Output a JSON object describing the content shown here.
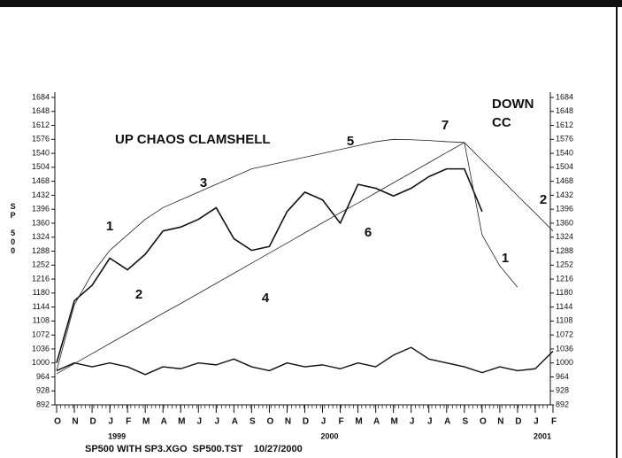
{
  "chart_data": {
    "type": "line",
    "ylabel": "SP 500",
    "footer": "SP500 WITH SP3.XGO  SP500.TST    10/27/2000",
    "categories": [
      "O",
      "N",
      "D",
      "J",
      "F",
      "M",
      "A",
      "M",
      "J",
      "J",
      "A",
      "S",
      "O",
      "N",
      "D",
      "J",
      "F",
      "M",
      "A",
      "M",
      "J",
      "J",
      "A",
      "S",
      "O",
      "N",
      "D",
      "J",
      "F"
    ],
    "years": [
      {
        "index": 3,
        "label": "1999"
      },
      {
        "index": 15,
        "label": "2000"
      },
      {
        "index": 27,
        "label": "2001"
      }
    ],
    "ylim": [
      892,
      1684
    ],
    "yticks": [
      892,
      928,
      964,
      1000,
      1036,
      1072,
      1108,
      1144,
      1180,
      1216,
      1252,
      1288,
      1324,
      1360,
      1396,
      1432,
      1468,
      1504,
      1540,
      1576,
      1612,
      1648,
      1684
    ],
    "series": [
      {
        "color": "#111111",
        "line_width": 1.6,
        "values": [
          1000,
          1160,
          1200,
          1270,
          1240,
          1280,
          1340,
          1350,
          1370,
          1400,
          1320,
          1290,
          1300,
          1390,
          1440,
          1420,
          1360,
          1460,
          1450,
          1430,
          1450,
          1480,
          1500,
          1500,
          1390,
          null,
          null,
          null,
          null
        ]
      },
      {
        "color": "#111111",
        "line_width": 1.4,
        "values": [
          980,
          1000,
          990,
          1000,
          990,
          970,
          990,
          985,
          1000,
          995,
          1010,
          990,
          980,
          1000,
          990,
          995,
          985,
          1000,
          990,
          1020,
          1040,
          1010,
          1000,
          990,
          975,
          990,
          980,
          985,
          1030
        ]
      },
      {
        "color": "#222222",
        "line_width": 0.8,
        "values": [
          980,
          1150,
          1230,
          1290,
          1330,
          1370,
          1400,
          1420,
          1440,
          1460,
          1480,
          1500,
          1510,
          1520,
          1530,
          1540,
          1550,
          1560,
          1570,
          1576,
          1575,
          1573,
          1570,
          1568,
          null,
          null,
          null,
          null,
          null
        ]
      },
      {
        "color": "#222222",
        "line_width": 0.8,
        "values": [
          972,
          998,
          1024,
          1050,
          1076,
          1102,
          1128,
          1153,
          1179,
          1205,
          1231,
          1257,
          1283,
          1309,
          1335,
          1361,
          1387,
          1412,
          1438,
          1464,
          1490,
          1516,
          1542,
          1568,
          null,
          null,
          null,
          null,
          null
        ]
      },
      {
        "color": "#222222",
        "line_width": 0.8,
        "values": [
          null,
          null,
          null,
          null,
          null,
          null,
          null,
          null,
          null,
          null,
          null,
          null,
          null,
          null,
          null,
          null,
          null,
          null,
          null,
          null,
          null,
          null,
          null,
          1568,
          1522,
          1477,
          1431,
          1386,
          1340
        ]
      },
      {
        "color": "#222222",
        "line_width": 0.8,
        "values": [
          null,
          null,
          null,
          null,
          null,
          null,
          null,
          null,
          null,
          null,
          null,
          null,
          null,
          null,
          null,
          null,
          null,
          null,
          null,
          null,
          null,
          null,
          null,
          1568,
          1330,
          1250,
          1195,
          null,
          null
        ]
      }
    ],
    "annotations": [
      "UP CHAOS CLAMSHELL",
      "DOWN",
      "CC",
      "1",
      "2",
      "3",
      "4",
      "5",
      "6",
      "7",
      "2",
      "1"
    ]
  }
}
